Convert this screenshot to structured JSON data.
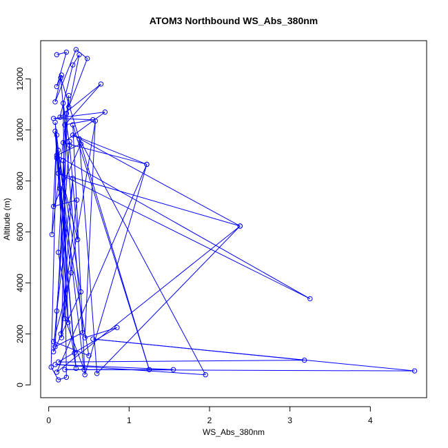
{
  "chart_data": {
    "type": "line",
    "title": "ATOM3 Northbound WS_Abs_380nm",
    "xlabel": "WS_Abs_380nm",
    "ylabel": "Altitude (m)",
    "xlim": [
      -0.1,
      4.7
    ],
    "ylim": [
      -500,
      13500
    ],
    "xticks": [
      0,
      1,
      2,
      3,
      4
    ],
    "yticks": [
      0,
      2000,
      4000,
      6000,
      8000,
      10000,
      12000
    ],
    "grid": false,
    "legend": "none",
    "series_color": "#0000ff",
    "series": [
      {
        "points": [
          [
            0.1,
            12950
          ],
          [
            0.22,
            13050
          ],
          [
            0.1,
            11700
          ],
          [
            0.16,
            12150
          ],
          [
            0.08,
            11100
          ],
          [
            0.34,
            13150
          ],
          [
            0.48,
            12800
          ],
          [
            0.25,
            10900
          ],
          [
            0.38,
            12950
          ],
          [
            0.3,
            12550
          ],
          [
            0.14,
            10500
          ],
          [
            0.65,
            11800
          ],
          [
            0.2,
            10200
          ],
          [
            0.55,
            10400
          ],
          [
            0.06,
            10450
          ],
          [
            0.7,
            10700
          ],
          [
            0.18,
            9500
          ],
          [
            1.22,
            8650
          ],
          [
            0.3,
            9800
          ],
          [
            2.38,
            6230
          ],
          [
            0.12,
            8300
          ],
          [
            3.25,
            3380
          ],
          [
            0.1,
            9000
          ],
          [
            0.4,
            9450
          ],
          [
            0.06,
            7000
          ],
          [
            0.35,
            7250
          ],
          [
            0.15,
            2000
          ],
          [
            0.58,
            10350
          ],
          [
            0.45,
            1850
          ],
          [
            0.85,
            2250
          ],
          [
            0.12,
            900
          ],
          [
            3.18,
            970
          ],
          [
            0.55,
            1800
          ],
          [
            4.55,
            550
          ],
          [
            0.2,
            600
          ],
          [
            1.55,
            600
          ],
          [
            0.08,
            800
          ],
          [
            1.95,
            400
          ],
          [
            0.38,
            9650
          ],
          [
            0.6,
            450
          ],
          [
            2.38,
            6230
          ],
          [
            0.1,
            500
          ],
          [
            1.22,
            8650
          ],
          [
            0.45,
            400
          ],
          [
            0.3,
            10200
          ],
          [
            1.25,
            600
          ],
          [
            0.15,
            12050
          ],
          [
            0.42,
            2050
          ],
          [
            0.08,
            1500
          ],
          [
            0.25,
            11350
          ],
          [
            0.04,
            5900
          ],
          [
            0.1,
            9800
          ],
          [
            0.03,
            700
          ],
          [
            0.12,
            200
          ],
          [
            0.22,
            300
          ],
          [
            0.18,
            11050
          ],
          [
            0.26,
            9400
          ],
          [
            0.36,
            5700
          ],
          [
            0.1,
            8900
          ],
          [
            0.28,
            4400
          ],
          [
            0.06,
            1700
          ],
          [
            0.5,
            1150
          ],
          [
            0.14,
            7700
          ],
          [
            0.32,
            1250
          ],
          [
            0.08,
            10300
          ],
          [
            0.44,
            600
          ],
          [
            0.2,
            2600
          ],
          [
            0.12,
            9200
          ],
          [
            0.4,
            3650
          ],
          [
            0.06,
            1300
          ],
          [
            0.26,
            9550
          ],
          [
            0.1,
            2900
          ],
          [
            0.3,
            8100
          ],
          [
            0.16,
            1850
          ],
          [
            0.22,
            10650
          ],
          [
            0.12,
            5200
          ],
          [
            0.34,
            650
          ],
          [
            0.08,
            9950
          ],
          [
            0.24,
            2450
          ],
          [
            0.18,
            8800
          ]
        ]
      }
    ]
  }
}
